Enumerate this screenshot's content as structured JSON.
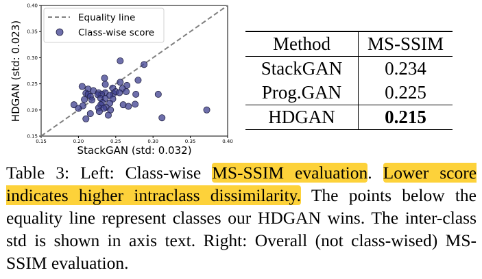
{
  "chart_data": {
    "type": "scatter",
    "xlabel": "StackGAN (std: 0.032)",
    "ylabel": "HDGAN (std: 0.023)",
    "xlim": [
      0.15,
      0.4
    ],
    "ylim": [
      0.15,
      0.4
    ],
    "xticks": [
      "0.15",
      "0.20",
      "0.25",
      "0.30",
      "0.35",
      "0.40"
    ],
    "yticks": [
      "0.15",
      "0.20",
      "0.25",
      "0.30",
      "0.35",
      "0.40"
    ],
    "legend_position": "top-left",
    "legend": [
      "Equality line",
      "Class-wise score"
    ],
    "grid": false,
    "point_color": "#3d3f8f",
    "line_color": "#7f7f7f",
    "points": [
      [
        0.256,
        0.294
      ],
      [
        0.288,
        0.287
      ],
      [
        0.235,
        0.261
      ],
      [
        0.256,
        0.253
      ],
      [
        0.28,
        0.257
      ],
      [
        0.236,
        0.249
      ],
      [
        0.265,
        0.247
      ],
      [
        0.205,
        0.245
      ],
      [
        0.246,
        0.242
      ],
      [
        0.213,
        0.24
      ],
      [
        0.259,
        0.241
      ],
      [
        0.22,
        0.237
      ],
      [
        0.264,
        0.235
      ],
      [
        0.227,
        0.233
      ],
      [
        0.236,
        0.233
      ],
      [
        0.247,
        0.231
      ],
      [
        0.231,
        0.23
      ],
      [
        0.21,
        0.232
      ],
      [
        0.213,
        0.23
      ],
      [
        0.25,
        0.235
      ],
      [
        0.226,
        0.229
      ],
      [
        0.242,
        0.228
      ],
      [
        0.255,
        0.233
      ],
      [
        0.307,
        0.23
      ],
      [
        0.277,
        0.23
      ],
      [
        0.216,
        0.226
      ],
      [
        0.23,
        0.222
      ],
      [
        0.236,
        0.222
      ],
      [
        0.246,
        0.221
      ],
      [
        0.208,
        0.22
      ],
      [
        0.218,
        0.219
      ],
      [
        0.232,
        0.214
      ],
      [
        0.242,
        0.213
      ],
      [
        0.23,
        0.21
      ],
      [
        0.26,
        0.21
      ],
      [
        0.276,
        0.211
      ],
      [
        0.194,
        0.21
      ],
      [
        0.206,
        0.208
      ],
      [
        0.237,
        0.205
      ],
      [
        0.227,
        0.204
      ],
      [
        0.234,
        0.203
      ],
      [
        0.2,
        0.203
      ],
      [
        0.243,
        0.2
      ],
      [
        0.267,
        0.207
      ],
      [
        0.228,
        0.197
      ],
      [
        0.216,
        0.193
      ],
      [
        0.24,
        0.19
      ],
      [
        0.21,
        0.183
      ],
      [
        0.312,
        0.185
      ],
      [
        0.372,
        0.2
      ]
    ]
  },
  "table": {
    "headers": [
      "Method",
      "MS-SSIM"
    ],
    "rows": [
      {
        "method": "StackGAN",
        "score": "0.234"
      },
      {
        "method": "Prog.GAN",
        "score": "0.225"
      },
      {
        "method": "HDGAN",
        "score": "0.215"
      }
    ]
  },
  "caption": {
    "prefix": "Table 3: Left: Class-wise ",
    "hl1": "MS-SSIM evaluation",
    "mid": ". ",
    "hl2": "Lower score indicates higher intraclass dissimilarity.",
    "rest": " The points below the equality line represent classes our HDGAN wins. The inter-class std is shown in axis text. Right: Overall (not class-wised) MS-SSIM evaluation.",
    "highlight_color": "#fdd23a"
  }
}
